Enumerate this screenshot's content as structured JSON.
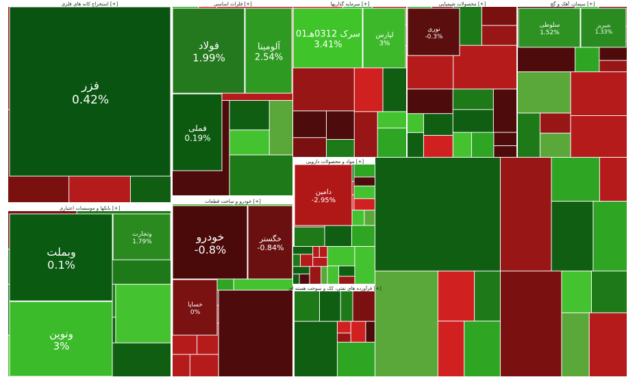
{
  "sectors": [
    {
      "title": "استخراج کانه های فلزی [+]"
    },
    {
      "title": "فلزات اساسی [+]"
    },
    {
      "title": "سرمایه گذاریها [+]"
    },
    {
      "title": "محصولات شیمیایی [+]"
    },
    {
      "title": "سیمان، آهک و گچ [+]"
    },
    {
      "title": "بانکها و موسسات اعتباری [+]"
    },
    {
      "title": "خودرو و ساخت قطعات [+]"
    },
    {
      "title": "مواد و محصولات دارویی [+]"
    },
    {
      "title": "فرآورده های نفتی، کک و سوخت هسته ای [+]"
    }
  ],
  "tiles": [
    {
      "label": "فزر",
      "change": "0.42%",
      "color": "#0a5411"
    },
    {
      "label": "فولاد",
      "change": "1.99%",
      "color": "#24781d"
    },
    {
      "label": "آلومینا",
      "change": "2.54%",
      "color": "#2f9a22"
    },
    {
      "label": "فملی",
      "change": "0.19%",
      "color": "#0c5a10"
    },
    {
      "label": "سرک 0312هـ01",
      "change": "3.41%",
      "color": "#3fc42a"
    },
    {
      "label": "لپارس",
      "change": "3%",
      "color": "#3db82a"
    },
    {
      "label": "نوری",
      "change": "-0.3%",
      "color": "#5a0e0e"
    },
    {
      "label": "سلوطی",
      "change": "1.52%",
      "color": "#2e9222"
    },
    {
      "label": "شبریز",
      "change": "1.33%",
      "color": "#2a8c20"
    },
    {
      "label": "وبملت",
      "change": "0.1%",
      "color": "#0b5a12"
    },
    {
      "label": "ونوین",
      "change": "3%",
      "color": "#3bbb2a"
    },
    {
      "label": "وتجارت",
      "change": "1.79%",
      "color": "#2a8a20"
    },
    {
      "label": "خودرو",
      "change": "-0.8%",
      "color": "#4a0a0a"
    },
    {
      "label": "خگستر",
      "change": "-0.84%",
      "color": "#6a1010"
    },
    {
      "label": "خساپا",
      "change": "0%",
      "color": "#7a1212"
    },
    {
      "label": "دامین",
      "change": "-2.95%",
      "color": "#b01818"
    }
  ]
}
